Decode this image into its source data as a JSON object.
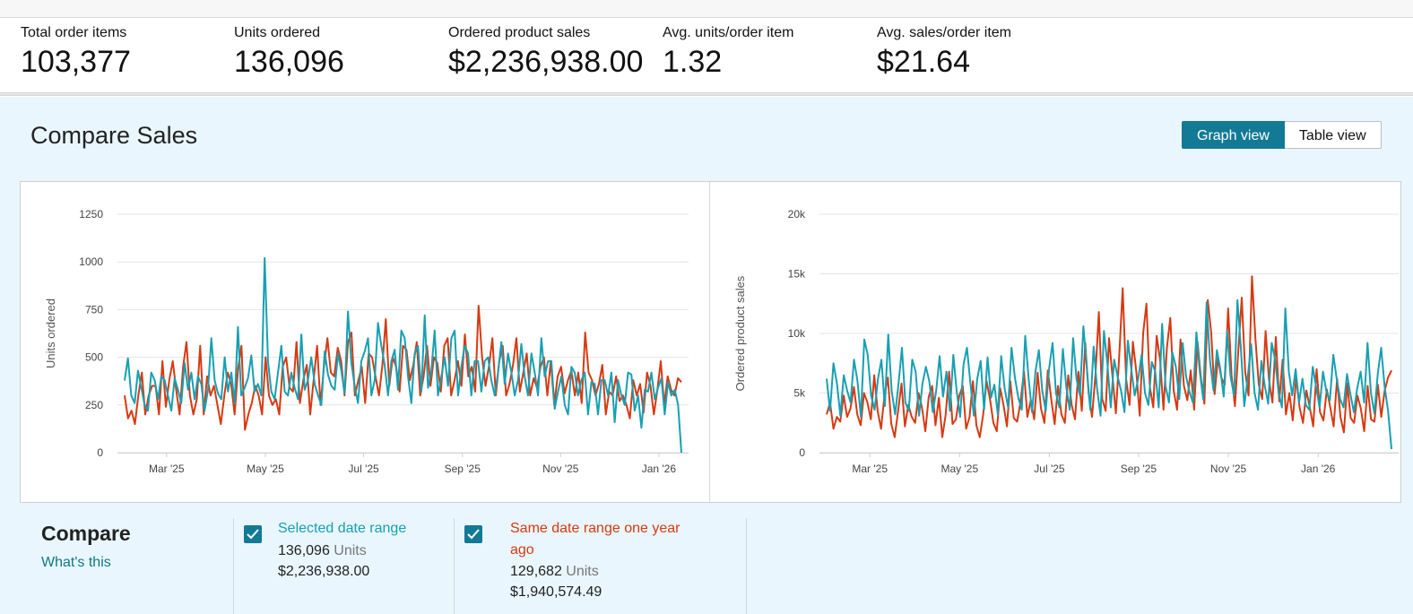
{
  "metrics": [
    {
      "label": "Total order items",
      "value": "103,377"
    },
    {
      "label": "Units ordered",
      "value": "136,096"
    },
    {
      "label": "Ordered product sales",
      "value": "$2,236,938.00"
    },
    {
      "label": "Avg. units/order item",
      "value": "1.32"
    },
    {
      "label": "Avg. sales/order item",
      "value": "$21.64"
    }
  ],
  "panel": {
    "title": "Compare Sales",
    "view_buttons": {
      "graph": "Graph view",
      "table": "Table view"
    }
  },
  "compare": {
    "title": "Compare",
    "whats_this": "What's this",
    "series": [
      {
        "name": "Selected date range",
        "units": "136,096",
        "units_word": "Units",
        "sales": "$2,236,938.00",
        "color": "#17a0b2",
        "checked": true
      },
      {
        "name": "Same date range one year ago",
        "units": "129,682",
        "units_word": "Units",
        "sales": "$1,940,574.49",
        "color": "#d63a12",
        "checked": true
      }
    ]
  },
  "colors": {
    "selected": "#17a0b2",
    "prior": "#d63a12",
    "accent": "#137a95"
  },
  "chart_data": [
    {
      "type": "line",
      "ylabel": "Units ordered",
      "ylim": [
        0,
        1250
      ],
      "y_ticks": [
        0,
        250,
        500,
        750,
        1000,
        1250
      ],
      "y_tick_labels": [
        "0",
        "250",
        "500",
        "750",
        "1000",
        "1250"
      ],
      "x_ticks": [
        "Mar '25",
        "May '25",
        "Jul '25",
        "Sep '25",
        "Nov '25",
        "Jan '26"
      ],
      "x_tick_positions": [
        0.086,
        0.259,
        0.431,
        0.604,
        0.776,
        0.948
      ],
      "grid": true,
      "series": [
        {
          "name": "Selected date range",
          "values": [
            378,
            495,
            300,
            260,
            430,
            340,
            250,
            220,
            420,
            380,
            280,
            400,
            380,
            300,
            220,
            390,
            330,
            260,
            470,
            330,
            420,
            280,
            400,
            360,
            220,
            330,
            600,
            380,
            310,
            280,
            500,
            320,
            420,
            260,
            660,
            300,
            340,
            390,
            510,
            320,
            360,
            300,
            1020,
            480,
            320,
            280,
            420,
            560,
            320,
            300,
            420,
            340,
            280,
            620,
            330,
            380,
            500,
            360,
            300,
            250,
            530,
            410,
            350,
            330,
            520,
            430,
            310,
            740,
            470,
            350,
            260,
            480,
            530,
            600,
            300,
            380,
            680,
            560,
            460,
            300,
            480,
            540,
            330,
            640,
            600,
            400,
            260,
            520,
            560,
            320,
            720,
            340,
            430,
            640,
            300,
            400,
            500,
            350,
            600,
            640,
            300,
            450,
            560,
            520,
            300,
            480,
            480,
            320,
            480,
            500,
            380,
            300,
            420,
            580,
            360,
            520,
            420,
            300,
            380,
            570,
            400,
            300,
            520,
            420,
            300,
            600,
            400,
            480,
            480,
            230,
            320,
            400,
            250,
            200,
            450,
            420,
            300,
            380,
            420,
            200,
            370,
            360,
            200,
            380,
            380,
            300,
            420,
            160,
            380,
            300,
            250,
            420,
            410,
            220,
            300,
            130,
            330,
            320,
            420,
            280,
            340,
            390,
            200,
            370,
            300,
            330,
            250,
            0
          ]
        },
        {
          "name": "Same date range one year ago",
          "values": [
            300,
            180,
            220,
            150,
            300,
            420,
            200,
            300,
            350,
            350,
            200,
            480,
            240,
            380,
            480,
            330,
            200,
            450,
            580,
            300,
            200,
            280,
            560,
            200,
            400,
            300,
            350,
            250,
            150,
            300,
            420,
            360,
            200,
            440,
            560,
            120,
            200,
            260,
            350,
            300,
            200,
            500,
            300,
            250,
            280,
            200,
            450,
            500,
            340,
            320,
            580,
            260,
            380,
            460,
            200,
            380,
            560,
            250,
            450,
            600,
            420,
            400,
            550,
            480,
            300,
            580,
            630,
            300,
            380,
            450,
            260,
            520,
            500,
            400,
            300,
            460,
            700,
            350,
            500,
            450,
            320,
            560,
            540,
            380,
            460,
            580,
            300,
            400,
            560,
            350,
            500,
            470,
            320,
            560,
            600,
            300,
            380,
            480,
            350,
            620,
            400,
            450,
            320,
            770,
            500,
            350,
            450,
            600,
            300,
            480,
            560,
            300,
            360,
            460,
            600,
            320,
            420,
            520,
            300,
            390,
            340,
            450,
            500,
            300,
            480,
            250,
            400,
            450,
            310,
            380,
            430,
            300,
            420,
            260,
            630,
            420,
            380,
            300,
            360,
            460,
            200,
            320,
            300,
            400,
            270,
            300,
            250,
            180,
            380,
            300,
            360,
            210,
            420,
            350,
            200,
            330,
            480,
            250,
            400,
            330,
            300,
            390,
            370
          ]
        }
      ]
    },
    {
      "type": "line",
      "ylabel": "Ordered product sales",
      "ylim": [
        0,
        20000
      ],
      "y_ticks": [
        0,
        5000,
        10000,
        15000,
        20000
      ],
      "y_tick_labels": [
        "0",
        "5k",
        "10k",
        "15k",
        "20k"
      ],
      "x_ticks": [
        "Mar '25",
        "May '25",
        "Jul '25",
        "Sep '25",
        "Nov '25",
        "Jan '26"
      ],
      "x_tick_positions": [
        0.087,
        0.242,
        0.397,
        0.551,
        0.706,
        0.861
      ],
      "grid": true,
      "series": [
        {
          "name": "Selected date range",
          "values": [
            6200,
            3500,
            7500,
            5800,
            3100,
            6500,
            5200,
            4200,
            7800,
            6000,
            3000,
            9500,
            8200,
            4800,
            3600,
            6200,
            7800,
            3900,
            9900,
            5200,
            3200,
            5800,
            8800,
            4200,
            3500,
            7800,
            6800,
            3100,
            5800,
            7200,
            6000,
            3400,
            5200,
            8100,
            4700,
            6800,
            3500,
            8200,
            5100,
            3000,
            7400,
            8800,
            5800,
            3100,
            6200,
            7700,
            3600,
            8000,
            4600,
            5700,
            3200,
            8100,
            5400,
            3800,
            8800,
            6300,
            4600,
            3600,
            9800,
            6200,
            3400,
            6800,
            8600,
            5200,
            3500,
            7100,
            9200,
            5000,
            3800,
            8700,
            5500,
            3600,
            9600,
            6200,
            4800,
            10600,
            7100,
            3600,
            8900,
            5400,
            3100,
            10200,
            7500,
            3800,
            7800,
            6400,
            5200,
            3400,
            9400,
            7000,
            4800,
            6200,
            8200,
            5000,
            4000,
            7600,
            6800,
            3800,
            10800,
            5600,
            4200,
            8400,
            7200,
            4500,
            9200,
            6400,
            5100,
            4200,
            10100,
            6800,
            4500,
            12600,
            7700,
            5200,
            8600,
            7000,
            4700,
            10200,
            6400,
            4800,
            12800,
            8800,
            3900,
            6300,
            9100,
            5000,
            3600,
            7700,
            5600,
            4100,
            9200,
            7800,
            5100,
            3800,
            12100,
            6800,
            4800,
            7000,
            4200,
            6200,
            4000,
            3600,
            7200,
            5500,
            3800,
            6800,
            5100,
            4400,
            8200,
            6200,
            4500,
            3800,
            6600,
            4900,
            3400,
            5400,
            6800,
            4200,
            9200,
            5000,
            3300,
            6600,
            8800,
            5500,
            3500,
            300
          ]
        },
        {
          "name": "Same date range one year ago",
          "values": [
            3200,
            4200,
            2000,
            3000,
            2600,
            4800,
            3000,
            3700,
            5500,
            3200,
            2300,
            5000,
            4200,
            2800,
            6500,
            3500,
            2000,
            4800,
            6300,
            2400,
            1300,
            3500,
            5800,
            2200,
            4000,
            3000,
            2500,
            5000,
            3800,
            1800,
            4700,
            5600,
            2300,
            4600,
            1300,
            3200,
            6800,
            2400,
            2800,
            4800,
            5600,
            2000,
            3000,
            6000,
            2300,
            1300,
            3200,
            6000,
            4500,
            2500,
            1800,
            5400,
            4000,
            2200,
            6000,
            2900,
            2600,
            4300,
            6800,
            3000,
            4400,
            2800,
            6700,
            3700,
            2500,
            6900,
            4500,
            2400,
            5600,
            3200,
            2500,
            6500,
            4000,
            2800,
            6800,
            3500,
            9200,
            5000,
            3000,
            6500,
            11800,
            4500,
            3500,
            9600,
            6400,
            3300,
            8200,
            13800,
            6200,
            4000,
            9300,
            6800,
            3100,
            10000,
            12500,
            5500,
            3800,
            9800,
            7800,
            3600,
            8800,
            11300,
            5200,
            3600,
            9500,
            5600,
            4400,
            6900,
            3600,
            9300,
            6200,
            4100,
            12800,
            10100,
            4900,
            7900,
            6300,
            5700,
            12100,
            6500,
            3900,
            8600,
            13000,
            6800,
            4800,
            14800,
            9600,
            5700,
            4500,
            10200,
            6100,
            4200,
            9700,
            4300,
            7800,
            3200,
            5000,
            2700,
            6300,
            3800,
            2500,
            5200,
            3800,
            2200,
            7000,
            3400,
            2700,
            5300,
            3800,
            2200,
            6200,
            3000,
            1700,
            5800,
            2900,
            2500,
            4800,
            3700,
            1800,
            5600,
            2800,
            2600,
            5700,
            3000,
            5200,
            6300,
            6900
          ]
        }
      ]
    }
  ]
}
